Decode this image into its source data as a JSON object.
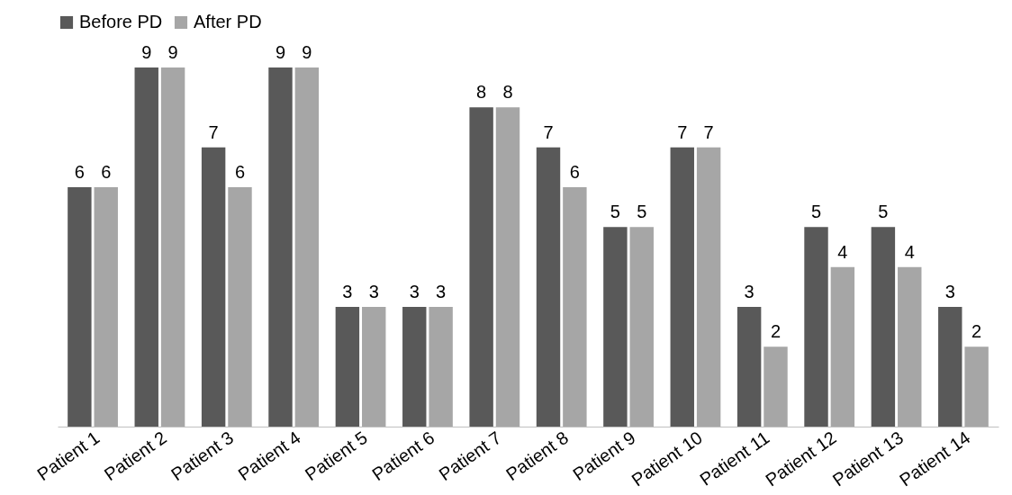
{
  "chart_data": {
    "type": "bar",
    "categories": [
      "Patient 1",
      "Patient 2",
      "Patient 3",
      "Patient 4",
      "Patient 5",
      "Patient 6",
      "Patient 7",
      "Patient 8",
      "Patient 9",
      "Patient 10",
      "Patient 11",
      "Patient 12",
      "Patient 13",
      "Patient 14"
    ],
    "series": [
      {
        "name": "Before PD",
        "color": "#595959",
        "values": [
          6,
          9,
          7,
          9,
          3,
          3,
          8,
          7,
          5,
          7,
          3,
          5,
          5,
          3
        ]
      },
      {
        "name": "After PD",
        "color": "#a6a6a6",
        "values": [
          6,
          9,
          6,
          9,
          3,
          3,
          8,
          6,
          5,
          7,
          2,
          4,
          4,
          2
        ]
      }
    ],
    "data_labels": true,
    "legend": "top",
    "grid": false
  }
}
